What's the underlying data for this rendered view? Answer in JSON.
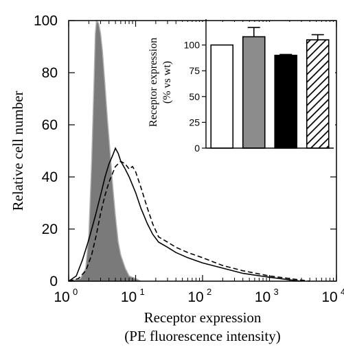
{
  "chart_data": [
    {
      "type": "histogram",
      "title": "",
      "xlabel": "Receptor expression",
      "xlabel_line2": "(PE fluorescence intensity)",
      "ylabel": "Relative cell number",
      "xscale": "log",
      "xlim": [
        1,
        10000
      ],
      "ylim": [
        0,
        100
      ],
      "xticks": [
        {
          "base": "10",
          "exp": "0",
          "value": 1
        },
        {
          "base": "10",
          "exp": "1",
          "value": 10
        },
        {
          "base": "10",
          "exp": "2",
          "value": 100
        },
        {
          "base": "10",
          "exp": "3",
          "value": 1000
        },
        {
          "base": "10",
          "exp": "4",
          "value": 10000
        }
      ],
      "yticks": [
        "0",
        "20",
        "40",
        "60",
        "80",
        "100"
      ],
      "series": [
        {
          "style": "filled",
          "color": "#7a7a7a",
          "x": [
            1.0,
            1.5,
            1.8,
            2.0,
            2.2,
            2.4,
            2.5,
            2.6,
            2.8,
            3.0,
            3.2,
            3.5,
            3.8,
            4.0,
            4.5,
            5.0,
            5.5,
            6.0,
            7.0,
            8.0,
            10.0,
            12.0
          ],
          "y": [
            0,
            1,
            5,
            18,
            45,
            78,
            95,
            100,
            99,
            95,
            88,
            75,
            62,
            55,
            38,
            25,
            15,
            10,
            5,
            2,
            1,
            0
          ]
        },
        {
          "style": "solid",
          "color": "#000000",
          "x": [
            1.0,
            1.3,
            1.6,
            2.0,
            2.5,
            3.0,
            3.5,
            4.0,
            4.5,
            5.0,
            5.5,
            6.0,
            7.0,
            8.0,
            10.0,
            12.0,
            15.0,
            18.0,
            22.0,
            30.0,
            40.0,
            60.0,
            100.0,
            200.0,
            400.0,
            1000.0,
            2000.0,
            3000.0
          ],
          "y": [
            0,
            2,
            8,
            16,
            25,
            33,
            40,
            45,
            48,
            51,
            49,
            46,
            43,
            40,
            34,
            28,
            22,
            18,
            15,
            13,
            11,
            9,
            7,
            5,
            3,
            1.5,
            0.5,
            0
          ]
        },
        {
          "style": "dashed",
          "color": "#000000",
          "x": [
            1.0,
            1.4,
            1.8,
            2.2,
            2.6,
            3.0,
            3.5,
            4.0,
            5.0,
            6.0,
            7.0,
            8.0,
            9.0,
            10.0,
            12.0,
            15.0,
            18.0,
            22.0,
            30.0,
            40.0,
            60.0,
            100.0,
            200.0,
            400.0,
            1000.0,
            2000.0,
            4000.0
          ],
          "y": [
            0,
            1,
            4,
            10,
            18,
            26,
            33,
            38,
            44,
            46,
            45,
            43,
            44,
            42,
            36,
            28,
            22,
            17,
            15,
            13,
            11,
            9,
            6,
            4,
            2,
            1,
            0
          ]
        }
      ]
    },
    {
      "type": "bar",
      "title": "",
      "xlabel": "",
      "ylabel": "Receptor expression",
      "ylabel_line2": "(% vs wt)",
      "ylim": [
        0,
        125
      ],
      "yticks": [
        "0",
        "25",
        "50",
        "75",
        "100"
      ],
      "values": [
        100,
        108,
        90,
        105
      ],
      "errors": [
        0,
        9,
        0.8,
        5
      ],
      "fills": [
        "#ffffff",
        "#8c8c8c",
        "#000000",
        "hatch"
      ]
    }
  ]
}
